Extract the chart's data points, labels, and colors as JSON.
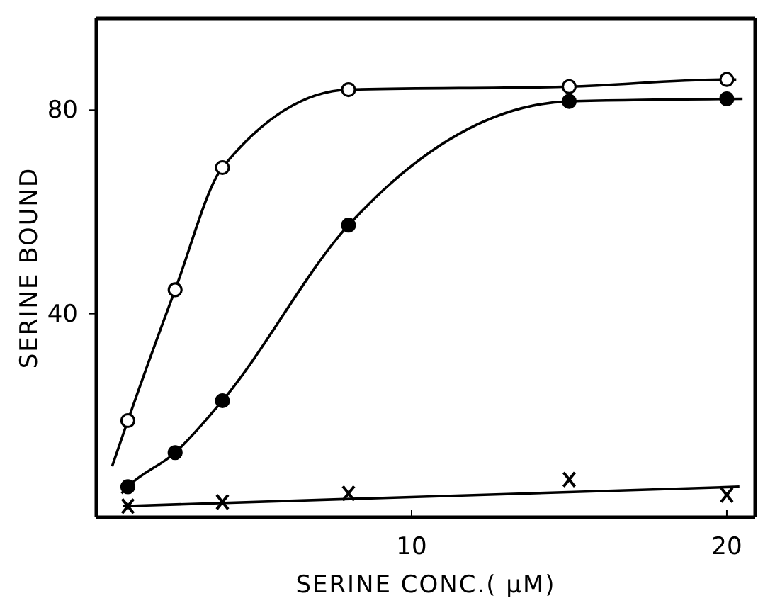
{
  "chart_data": {
    "type": "scatter",
    "xlabel": "SERINE CONC.( μM)",
    "ylabel": "SERINE BOUND",
    "xlim": [
      0,
      20.9
    ],
    "ylim": [
      0,
      98
    ],
    "xticks": [
      10,
      20
    ],
    "yticks": [
      40,
      80
    ],
    "grid": false,
    "series": [
      {
        "type": "line",
        "color": "#000000",
        "marker": "none",
        "x": [
          0.5,
          1,
          2.5,
          4,
          8,
          15,
          20,
          20.3
        ],
        "values": [
          10,
          19,
          44.7,
          68.7,
          84,
          84.6,
          86,
          86
        ]
      },
      {
        "type": "line",
        "color": "#000000",
        "marker": "none",
        "x": [
          0.8,
          1,
          2.5,
          4,
          8,
          15,
          20.5
        ],
        "values": [
          4.7,
          6,
          12.7,
          22.9,
          57.4,
          81.7,
          82.2
        ]
      },
      {
        "type": "line",
        "color": "#000000",
        "marker": "none",
        "x": [
          0.85,
          20.4
        ],
        "values": [
          2.2,
          6
        ]
      },
      {
        "color": "#ffffff",
        "marker": "circle",
        "x": [
          1,
          2.5,
          4,
          8,
          15,
          20
        ],
        "values": [
          19,
          44.7,
          68.7,
          84,
          84.6,
          86
        ]
      },
      {
        "color": "#000000",
        "marker": "circle",
        "x": [
          1,
          2.5,
          4,
          8,
          15,
          20
        ],
        "values": [
          6,
          12.7,
          22.9,
          57.4,
          81.7,
          82.2
        ]
      },
      {
        "color": "#000000",
        "marker": "cross",
        "x": [
          1,
          4,
          8,
          15,
          20
        ],
        "values": [
          2.2,
          3,
          4.7,
          7.4,
          4.4
        ]
      }
    ]
  }
}
